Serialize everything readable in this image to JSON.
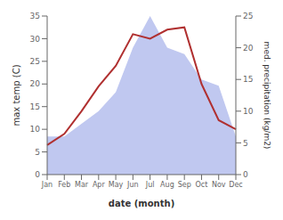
{
  "chart_data": {
    "type": "line",
    "categories": [
      "Jan",
      "Feb",
      "Mar",
      "Apr",
      "May",
      "Jun",
      "Jul",
      "Aug",
      "Sep",
      "Oct",
      "Nov",
      "Dec"
    ],
    "series": [
      {
        "type": "area",
        "axis": "y2",
        "color": "#c0c8f0",
        "values": [
          6.0,
          6.0,
          8.0,
          10.0,
          13.0,
          20.0,
          25.0,
          20.0,
          19.0,
          15.0,
          14.0,
          6.0
        ]
      },
      {
        "type": "line",
        "color": "#b03030",
        "values": [
          6.5,
          9.0,
          14.0,
          19.5,
          24.0,
          31.0,
          30.0,
          32.0,
          32.5,
          20.0,
          12.0,
          10.0
        ]
      }
    ],
    "xlabel": "date (month)",
    "ylabel": "max temp (C)",
    "y2label": "med. precipitation (kg/m2)",
    "ylim": [
      0,
      35
    ],
    "yticks": [
      0,
      5,
      10,
      15,
      20,
      25,
      30,
      35
    ],
    "y2lim": [
      0,
      25
    ],
    "y2ticks": [
      0,
      5,
      10,
      15,
      20,
      25
    ]
  }
}
